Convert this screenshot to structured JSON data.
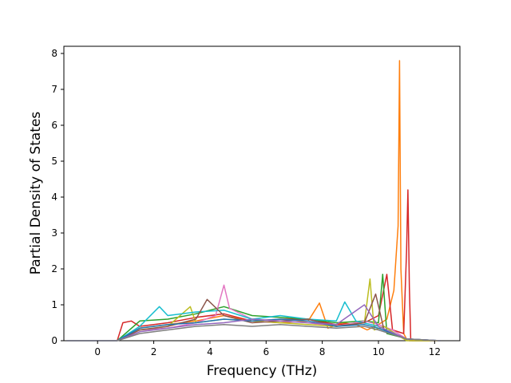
{
  "chart_data": {
    "type": "line",
    "title": "",
    "xlabel": "Frequency (THz)",
    "ylabel": "Partial Density of States",
    "xlim": [
      -1.2,
      12.9
    ],
    "ylim": [
      0,
      8.2
    ],
    "xticks": [
      0,
      2,
      4,
      6,
      8,
      10,
      12
    ],
    "yticks": [
      0,
      1,
      2,
      3,
      4,
      5,
      6,
      7,
      8
    ],
    "grid": false,
    "legend": "none",
    "colors": [
      "#1f77b4",
      "#ff7f0e",
      "#2ca02c",
      "#d62728",
      "#9467bd",
      "#8c564b",
      "#e377c2",
      "#7f7f7f",
      "#bcbd22",
      "#17becf"
    ],
    "series": [
      {
        "color": "#ff7f0e",
        "x": [
          -1.1,
          0.7,
          1.5,
          2.5,
          3.5,
          4.5,
          5.5,
          6.5,
          7.5,
          7.9,
          8.2,
          8.7,
          9.2,
          9.6,
          10.0,
          10.3,
          10.55,
          10.7,
          10.75,
          10.8,
          10.9,
          11.0,
          11.2,
          12.2
        ],
        "y": [
          0,
          0,
          0.35,
          0.45,
          0.55,
          0.7,
          0.55,
          0.5,
          0.55,
          1.05,
          0.35,
          0.5,
          0.45,
          0.3,
          0.45,
          0.6,
          1.4,
          3.2,
          7.8,
          2.0,
          0.2,
          0.05,
          0,
          0
        ]
      },
      {
        "color": "#d62728",
        "x": [
          -1.1,
          0.7,
          0.9,
          1.2,
          1.5,
          2.5,
          3.5,
          4.5,
          5.5,
          6.5,
          7.5,
          8.5,
          9.5,
          10.0,
          10.3,
          10.5,
          10.9,
          11.0,
          11.05,
          11.1,
          11.15,
          11.2,
          12.2
        ],
        "y": [
          0,
          0,
          0.5,
          0.55,
          0.4,
          0.5,
          0.65,
          0.75,
          0.55,
          0.6,
          0.6,
          0.45,
          0.5,
          0.7,
          1.85,
          0.3,
          0.2,
          2.5,
          4.2,
          1.5,
          0.05,
          0,
          0
        ]
      },
      {
        "color": "#2ca02c",
        "x": [
          -1.1,
          0.7,
          1.5,
          2.5,
          3.5,
          4.5,
          5.5,
          6.5,
          7.5,
          8.5,
          9.5,
          10.0,
          10.15,
          10.3,
          10.8,
          11.1,
          12.2
        ],
        "y": [
          0,
          0,
          0.55,
          0.6,
          0.75,
          0.95,
          0.7,
          0.65,
          0.6,
          0.5,
          0.55,
          0.5,
          1.85,
          0.2,
          0.1,
          0,
          0
        ]
      },
      {
        "color": "#e377c2",
        "x": [
          -1.1,
          0.7,
          1.5,
          2.5,
          3.5,
          4.2,
          4.5,
          4.7,
          5.5,
          6.5,
          7.5,
          8.5,
          9.5,
          10.0,
          10.5,
          11.1,
          12.2
        ],
        "y": [
          0,
          0,
          0.3,
          0.35,
          0.5,
          0.7,
          1.55,
          0.9,
          0.6,
          0.55,
          0.5,
          0.4,
          0.55,
          0.45,
          0.3,
          0,
          0
        ]
      },
      {
        "color": "#bcbd22",
        "x": [
          -1.1,
          0.7,
          1.5,
          2.5,
          3.3,
          3.5,
          4.5,
          5.5,
          6.5,
          7.5,
          8.5,
          9.5,
          9.7,
          9.85,
          10.2,
          11.0,
          12.2
        ],
        "y": [
          0,
          0,
          0.3,
          0.4,
          0.95,
          0.5,
          0.6,
          0.55,
          0.5,
          0.45,
          0.4,
          0.5,
          1.72,
          0.3,
          0.4,
          0,
          0
        ]
      },
      {
        "color": "#17becf",
        "x": [
          -1.1,
          0.7,
          1.5,
          2.2,
          2.5,
          3.5,
          4.5,
          5.5,
          6.5,
          7.5,
          8.5,
          8.8,
          9.2,
          10.0,
          11.0,
          12.2
        ],
        "y": [
          0,
          0,
          0.4,
          0.95,
          0.7,
          0.8,
          0.85,
          0.6,
          0.7,
          0.6,
          0.55,
          1.08,
          0.55,
          0.4,
          0.05,
          0
        ]
      },
      {
        "color": "#8c564b",
        "x": [
          -1.1,
          0.7,
          1.5,
          2.5,
          3.5,
          3.9,
          4.5,
          5.5,
          6.5,
          7.5,
          8.5,
          9.5,
          9.9,
          10.2,
          11.0,
          12.2
        ],
        "y": [
          0,
          0,
          0.3,
          0.4,
          0.6,
          1.15,
          0.7,
          0.5,
          0.55,
          0.6,
          0.4,
          0.5,
          1.3,
          0.3,
          0.05,
          0
        ]
      },
      {
        "color": "#1f77b4",
        "x": [
          -1.1,
          0.7,
          1.5,
          2.5,
          3.5,
          4.5,
          5.5,
          6.5,
          7.5,
          8.5,
          9.5,
          10.0,
          11.0,
          12.2
        ],
        "y": [
          0,
          0,
          0.35,
          0.45,
          0.5,
          0.6,
          0.55,
          0.6,
          0.55,
          0.4,
          0.45,
          0.35,
          0.05,
          0
        ]
      },
      {
        "color": "#9467bd",
        "x": [
          -1.1,
          0.7,
          1.5,
          2.5,
          3.5,
          4.5,
          5.5,
          6.5,
          7.5,
          8.5,
          9.5,
          10.0,
          11.0,
          12.2
        ],
        "y": [
          0,
          0,
          0.25,
          0.35,
          0.45,
          0.5,
          0.6,
          0.55,
          0.5,
          0.45,
          1.0,
          0.4,
          0.05,
          0
        ]
      },
      {
        "color": "#7f7f7f",
        "x": [
          -1.1,
          0.7,
          1.5,
          2.5,
          3.5,
          4.5,
          5.5,
          6.5,
          7.5,
          8.5,
          9.5,
          10.0,
          11.0,
          12.2
        ],
        "y": [
          0,
          0,
          0.2,
          0.3,
          0.4,
          0.45,
          0.4,
          0.45,
          0.4,
          0.35,
          0.4,
          0.3,
          0.05,
          0
        ]
      }
    ]
  }
}
